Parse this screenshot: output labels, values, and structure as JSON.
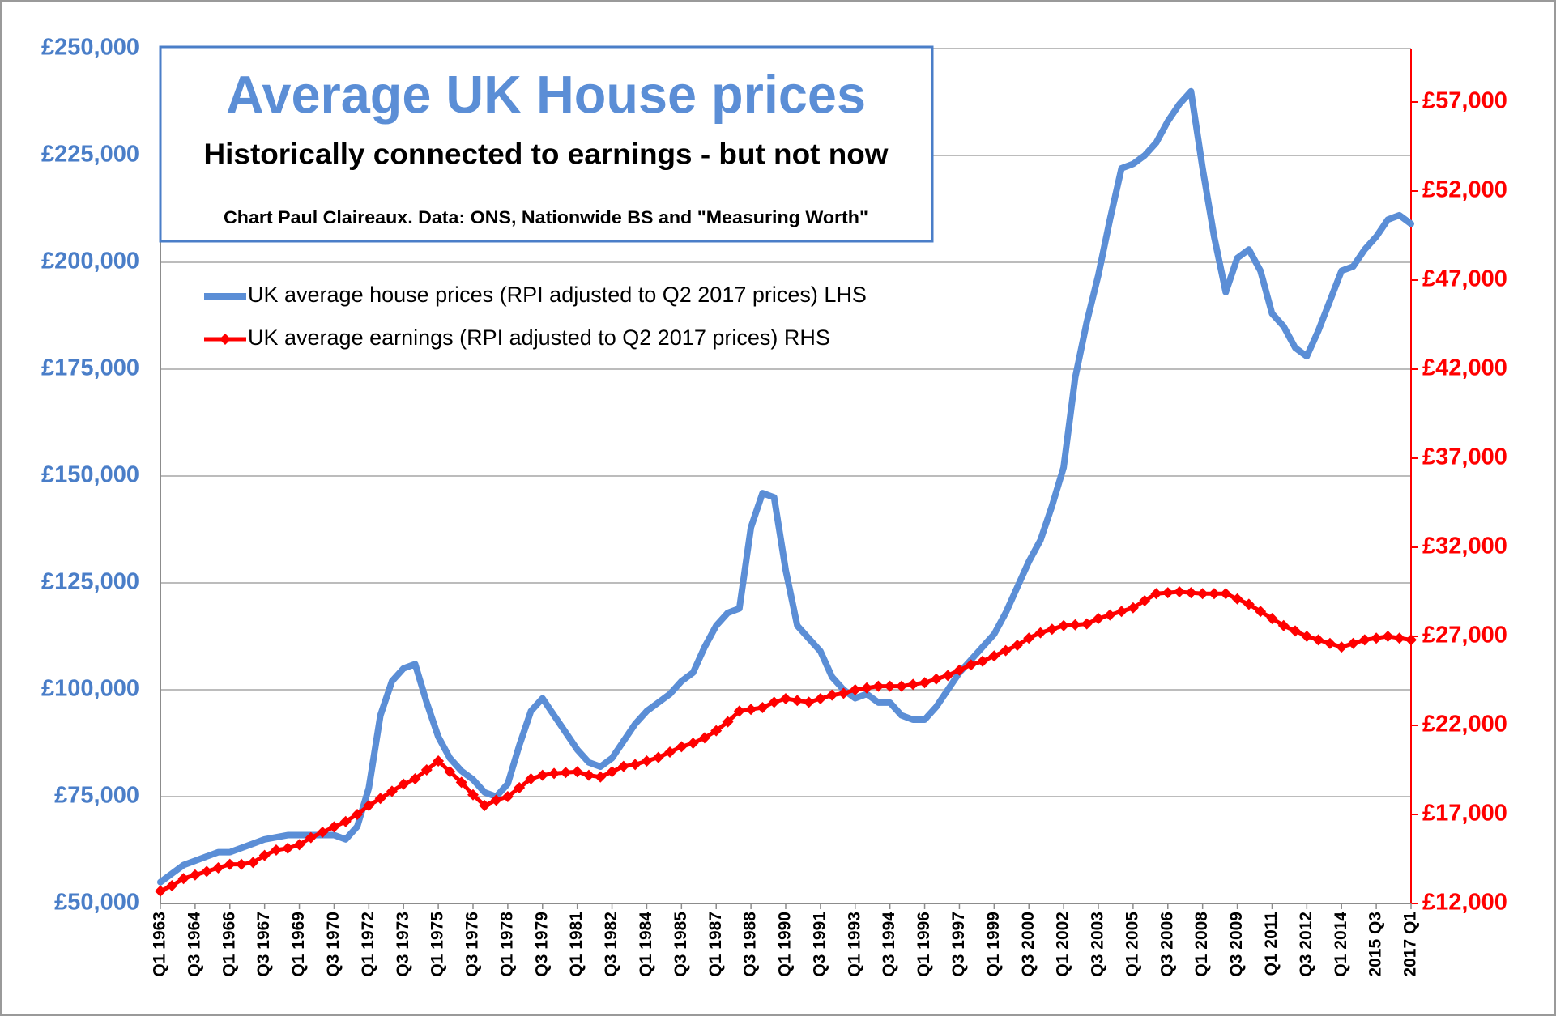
{
  "chart_data": {
    "type": "line",
    "title": "Average UK House prices",
    "subtitle": "Historically connected to earnings - but not now",
    "source": "Chart Paul Claireaux. Data: ONS, Nationwide BS and \"Measuring Worth\"",
    "categories": [
      "Q1 1963",
      null,
      null,
      "Q3 1964",
      null,
      null,
      "Q1 1966",
      null,
      null,
      "Q3 1967",
      null,
      null,
      "Q1 1969",
      null,
      null,
      "Q3 1970",
      null,
      null,
      "Q1 1972",
      null,
      null,
      "Q3 1973",
      null,
      null,
      "Q1 1975",
      null,
      null,
      "Q3 1976",
      null,
      null,
      "Q1 1978",
      null,
      null,
      "Q3 1979",
      null,
      null,
      "Q1 1981",
      null,
      null,
      "Q3 1982",
      null,
      null,
      "Q1 1984",
      null,
      null,
      "Q3 1985",
      null,
      null,
      "Q1 1987",
      null,
      null,
      "Q3 1988",
      null,
      null,
      "Q1 1990",
      null,
      null,
      "Q3 1991",
      null,
      null,
      "Q1 1993",
      null,
      null,
      "Q3 1994",
      null,
      null,
      "Q1 1996",
      null,
      null,
      "Q3 1997",
      null,
      null,
      "Q1 1999",
      null,
      null,
      "Q3 2000",
      null,
      null,
      "Q1 2002",
      null,
      null,
      "Q3 2003",
      null,
      null,
      "Q1 2005",
      null,
      null,
      "Q3 2006",
      null,
      null,
      "Q1 2008",
      null,
      null,
      "Q3 2009",
      null,
      null,
      "Q1 2011",
      null,
      null,
      "Q3 2012",
      null,
      null,
      "Q1 2014",
      null,
      null,
      "2015 Q3",
      null,
      null,
      "2017 Q1"
    ],
    "series": [
      {
        "name": "UK average house prices (RPI adjusted to Q2 2017 prices) LHS",
        "color": "#5b8ed6",
        "axis": "y",
        "values": [
          55000,
          57000,
          59000,
          60000,
          61000,
          62000,
          62000,
          63000,
          64000,
          65000,
          65500,
          66000,
          66000,
          66000,
          66000,
          66000,
          65000,
          68000,
          77000,
          94000,
          102000,
          105000,
          106000,
          97000,
          89000,
          84000,
          81000,
          79000,
          76000,
          75000,
          78000,
          87000,
          95000,
          98000,
          94000,
          90000,
          86000,
          83000,
          82000,
          84000,
          88000,
          92000,
          95000,
          97000,
          99000,
          102000,
          104000,
          110000,
          115000,
          118000,
          119000,
          138000,
          146000,
          145000,
          128000,
          115000,
          112000,
          109000,
          103000,
          100000,
          98000,
          99000,
          97000,
          97000,
          94000,
          93000,
          93000,
          96000,
          100000,
          104000,
          107000,
          110000,
          113000,
          118000,
          124000,
          130000,
          135000,
          143000,
          152000,
          173000,
          186000,
          197000,
          210000,
          222000,
          223000,
          225000,
          228000,
          233000,
          237000,
          240000,
          222000,
          206000,
          193000,
          201000,
          203000,
          198000,
          188000,
          185000,
          180000,
          178000,
          184000,
          191000,
          198000,
          199000,
          203000,
          206000,
          210000,
          211000,
          209000
        ]
      },
      {
        "name": "UK average earnings (RPI adjusted to Q2 2017 prices) RHS",
        "color": "#ff0000",
        "axis": "y2",
        "marker": "diamond",
        "values": [
          12700,
          13000,
          13400,
          13600,
          13800,
          14000,
          14200,
          14200,
          14300,
          14700,
          15000,
          15100,
          15300,
          15700,
          16000,
          16300,
          16600,
          17000,
          17500,
          17900,
          18300,
          18700,
          19000,
          19500,
          20000,
          19400,
          18800,
          18100,
          17500,
          17800,
          18000,
          18500,
          19000,
          19200,
          19300,
          19350,
          19400,
          19200,
          19100,
          19400,
          19700,
          19800,
          20000,
          20200,
          20500,
          20800,
          21000,
          21300,
          21700,
          22200,
          22800,
          22900,
          23000,
          23300,
          23500,
          23400,
          23300,
          23500,
          23700,
          23800,
          24000,
          24100,
          24200,
          24200,
          24200,
          24300,
          24400,
          24600,
          24800,
          25100,
          25400,
          25600,
          25900,
          26200,
          26500,
          26900,
          27200,
          27400,
          27600,
          27650,
          27700,
          28000,
          28200,
          28400,
          28600,
          29000,
          29400,
          29450,
          29500,
          29450,
          29400,
          29400,
          29400,
          29100,
          28800,
          28400,
          28000,
          27600,
          27300,
          27000,
          26800,
          26600,
          26400,
          26600,
          26800,
          26900,
          27000,
          26900,
          26800
        ]
      }
    ],
    "ylim": [
      50000,
      250000
    ],
    "yticks": [
      {
        "value": 50000,
        "label": "£50,000"
      },
      {
        "value": 75000,
        "label": "£75,000"
      },
      {
        "value": 100000,
        "label": "£100,000"
      },
      {
        "value": 125000,
        "label": "£125,000"
      },
      {
        "value": 150000,
        "label": "£150,000"
      },
      {
        "value": 175000,
        "label": "£175,000"
      },
      {
        "value": 200000,
        "label": "£200,000"
      },
      {
        "value": 225000,
        "label": "£225,000"
      },
      {
        "value": 250000,
        "label": "£250,000"
      }
    ],
    "y2lim": [
      12000,
      60000
    ],
    "y2ticks": [
      {
        "value": 12000,
        "label": "£12,000"
      },
      {
        "value": 17000,
        "label": "£17,000"
      },
      {
        "value": 22000,
        "label": "£22,000"
      },
      {
        "value": 27000,
        "label": "£27,000"
      },
      {
        "value": 32000,
        "label": "£32,000"
      },
      {
        "value": 37000,
        "label": "£37,000"
      },
      {
        "value": 42000,
        "label": "£42,000"
      },
      {
        "value": 47000,
        "label": "£47,000"
      },
      {
        "value": 52000,
        "label": "£52,000"
      },
      {
        "value": 57000,
        "label": "£57,000"
      }
    ],
    "ytick_color": "#4a7ec8",
    "y2tick_color": "#ff0000",
    "grid": true,
    "legend": "upper left"
  }
}
